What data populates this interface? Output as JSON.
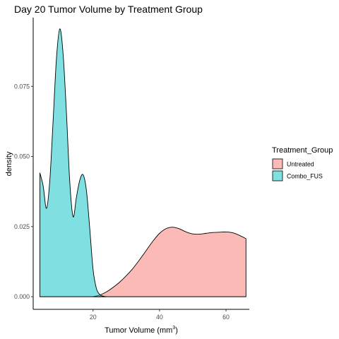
{
  "chart_data": {
    "type": "area",
    "subtype": "density",
    "title": "Day 20 Tumor Volume by Treatment Group",
    "xlabel": "Tumor Volume (mm",
    "xlabel_superscript": "3",
    "xlabel_suffix": ")",
    "ylabel": "density",
    "xlim": [
      2.0,
      67.0
    ],
    "ylim": [
      -0.0045,
      0.0995
    ],
    "x_ticks": [
      20,
      40,
      60
    ],
    "x_tick_labels": [
      "20",
      "40",
      "60"
    ],
    "y_ticks": [
      0.0,
      0.025,
      0.05,
      0.075
    ],
    "y_tick_labels": [
      "0.000",
      "0.025",
      "0.050",
      "0.075"
    ],
    "grid": false,
    "legend": {
      "title": "Treatment_Group",
      "position": "right"
    },
    "series": [
      {
        "name": "Untreated",
        "color": "#f8766d",
        "x": [
          20,
          22,
          24,
          26,
          28,
          30,
          32,
          34,
          36,
          38,
          40,
          42,
          44,
          46,
          48,
          50,
          52,
          54,
          56,
          58,
          60,
          62,
          64,
          66
        ],
        "y": [
          0.0,
          0.0006,
          0.0017,
          0.0033,
          0.0052,
          0.0075,
          0.0101,
          0.0132,
          0.0165,
          0.0198,
          0.0226,
          0.0243,
          0.0248,
          0.0242,
          0.0231,
          0.0224,
          0.0223,
          0.0226,
          0.0229,
          0.023,
          0.0231,
          0.0228,
          0.0219,
          0.0207
        ]
      },
      {
        "name": "Combo_FUS",
        "color": "#00bfc4",
        "x": [
          4,
          5,
          6,
          7,
          8,
          9,
          10,
          11,
          12,
          13,
          14,
          15,
          16,
          17,
          18,
          19,
          20,
          21,
          22,
          23,
          24
        ],
        "y": [
          0.0442,
          0.0395,
          0.0315,
          0.0415,
          0.063,
          0.085,
          0.0955,
          0.0865,
          0.0655,
          0.041,
          0.0285,
          0.0355,
          0.0415,
          0.0435,
          0.038,
          0.0245,
          0.0098,
          0.003,
          0.0008,
          0.0002,
          0.0
        ]
      }
    ]
  }
}
